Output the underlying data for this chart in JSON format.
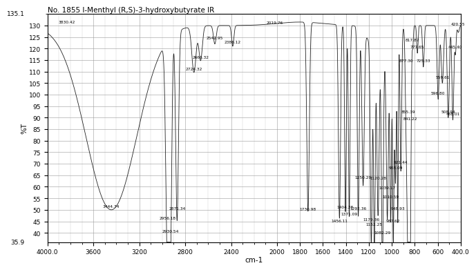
{
  "title": "No. 1855 l-Menthyl (R,S)-3-hydroxybutyrate IR",
  "xlabel": "cm-1",
  "ylabel": "%T",
  "xlim": [
    4000.0,
    400.0
  ],
  "ylim": [
    35.9,
    135.1
  ],
  "xticks": [
    4000,
    3600,
    3200,
    2800,
    2400,
    2000,
    1800,
    1600,
    1400,
    1200,
    1000,
    800,
    600,
    400
  ],
  "ytick_vals": [
    40,
    45,
    50,
    55,
    60,
    65,
    70,
    75,
    80,
    85,
    90,
    95,
    100,
    105,
    110,
    115,
    120,
    125,
    130
  ],
  "peak_labels": [
    [
      3830.42,
      130.8,
      "3830.42"
    ],
    [
      3444.74,
      50.8,
      "3444.74"
    ],
    [
      2956.18,
      45.8,
      "2956.18"
    ],
    [
      2871.34,
      50.0,
      "2871.34"
    ],
    [
      2930.54,
      39.9,
      "2930.54"
    ],
    [
      2666.32,
      115.5,
      "2666.32"
    ],
    [
      2724.32,
      110.5,
      "2724.32"
    ],
    [
      2542.95,
      124.0,
      "2542.95"
    ],
    [
      2386.12,
      122.0,
      "2386.12"
    ],
    [
      2019.76,
      130.5,
      "2019.76"
    ],
    [
      1730.98,
      49.5,
      "1730.98"
    ],
    [
      1456.11,
      44.5,
      "1456.11"
    ],
    [
      1404.28,
      50.5,
      "1404.28"
    ],
    [
      1371.09,
      47.5,
      "1371.09"
    ],
    [
      1292.36,
      50.0,
      "1292.36"
    ],
    [
      1250.29,
      63.5,
      "1250.29"
    ],
    [
      1179.36,
      45.0,
      "1179.36"
    ],
    [
      1152.25,
      43.0,
      "1152.25"
    ],
    [
      1120.28,
      63.0,
      "1120.28"
    ],
    [
      1082.29,
      39.5,
      "1082.29"
    ],
    [
      1039.17,
      59.0,
      "1039.17"
    ],
    [
      1010.59,
      55.0,
      "1010.59"
    ],
    [
      987.62,
      44.5,
      "987.62"
    ],
    [
      968.09,
      67.5,
      "968.09"
    ],
    [
      948.93,
      50.0,
      "948.93"
    ],
    [
      921.44,
      70.0,
      "921.44"
    ],
    [
      877.3,
      114.0,
      "877.30"
    ],
    [
      855.39,
      92.0,
      "855.39"
    ],
    [
      841.22,
      89.0,
      "841.22"
    ],
    [
      817.87,
      123.0,
      "817.87"
    ],
    [
      777.65,
      120.0,
      "777.65"
    ],
    [
      725.33,
      114.0,
      "725.33"
    ],
    [
      559.61,
      107.0,
      "559.61"
    ],
    [
      596.8,
      100.0,
      "596.80"
    ],
    [
      508.94,
      92.0,
      "508.94"
    ],
    [
      468.01,
      91.0,
      "468.01"
    ],
    [
      445.4,
      120.0,
      "445.40"
    ],
    [
      420.55,
      130.0,
      "420.55"
    ]
  ],
  "background_color": "#ffffff",
  "line_color": "#222222",
  "grid_color": "#999999"
}
